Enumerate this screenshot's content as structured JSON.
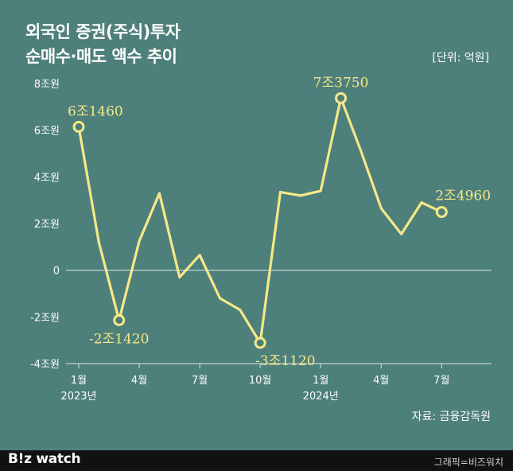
{
  "header": {
    "title_line1": "외국인 증권(주식)투자",
    "title_line2": "순매수·매도 액수 추이",
    "unit": "[단위: 억원]"
  },
  "source": "자료: 금융감독원",
  "footer": {
    "logo": "B!z watch",
    "credit": "그래픽=비즈워치"
  },
  "chart_data": {
    "type": "line",
    "title": "외국인 증권(주식)투자 순매수·매도 액수 추이",
    "xlabel": "",
    "ylabel": "",
    "unit": "억원",
    "ylim": [
      -40000,
      80000
    ],
    "y_ticks": [
      -40000,
      -20000,
      0,
      20000,
      40000,
      60000,
      80000
    ],
    "y_tick_labels": [
      "-4조원",
      "-2조원",
      "0",
      "2조원",
      "4조원",
      "6조원",
      "8조원"
    ],
    "x_tick_labels": [
      {
        "index": 0,
        "label": "1월",
        "year": "2023년"
      },
      {
        "index": 3,
        "label": "4월"
      },
      {
        "index": 6,
        "label": "7월"
      },
      {
        "index": 9,
        "label": "10월"
      },
      {
        "index": 12,
        "label": "1월",
        "year": "2024년"
      },
      {
        "index": 15,
        "label": "4월"
      },
      {
        "index": 18,
        "label": "7월"
      }
    ],
    "categories": [
      "2023-01",
      "2023-02",
      "2023-03",
      "2023-04",
      "2023-05",
      "2023-06",
      "2023-07",
      "2023-08",
      "2023-09",
      "2023-10",
      "2023-11",
      "2023-12",
      "2024-01",
      "2024-02",
      "2024-03",
      "2024-04",
      "2024-05",
      "2024-06",
      "2024-07"
    ],
    "series": [
      {
        "values": [
          61460,
          12000,
          -21420,
          12500,
          33000,
          -3000,
          6500,
          -12000,
          -17000,
          -31120,
          33500,
          32000,
          34000,
          73750,
          51000,
          26500,
          15500,
          29000,
          24960
        ]
      }
    ],
    "annotations": [
      {
        "index": 0,
        "text": "6조1460",
        "pos": "above"
      },
      {
        "index": 2,
        "text": "-2조1420",
        "pos": "below"
      },
      {
        "index": 9,
        "text": "-3조1120",
        "pos": "below-right"
      },
      {
        "index": 13,
        "text": "7조3750",
        "pos": "above"
      },
      {
        "index": 18,
        "text": "2조4960",
        "pos": "above"
      }
    ],
    "grid": false,
    "line_color": "#f6e787",
    "background_color": "#4d7f7b",
    "zero_line_color": "#d9e6e3"
  }
}
